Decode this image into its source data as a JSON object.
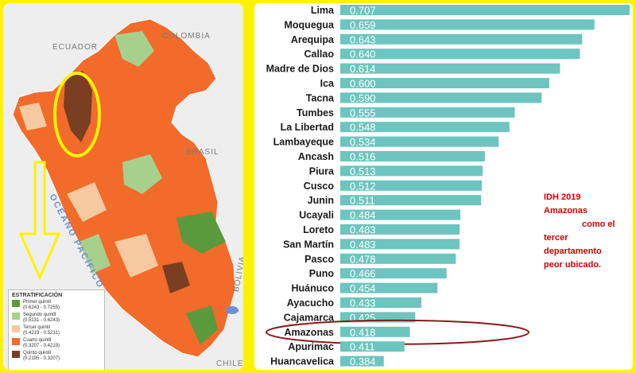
{
  "map": {
    "country_labels": [
      "ECUADOR",
      "COLOMBIA",
      "BRASIL",
      "BOLIVIA",
      "CHILE"
    ],
    "ocean_label": "OCÉANO PACÍFICO",
    "legend": {
      "title": "ESTRATIFICACIÓN",
      "items": [
        {
          "name": "Primer quintil",
          "range": "(0.6243 - 0.7255)",
          "color": "#5a9a3c"
        },
        {
          "name": "Segundo quintil",
          "range": "(0.5231 - 0.6243)",
          "color": "#a8d08d"
        },
        {
          "name": "Tercer quintil",
          "range": "(0.4219 - 0.5231)",
          "color": "#f6c9a0"
        },
        {
          "name": "Cuarto quintil",
          "range": "(0.3207 - 0.4219)",
          "color": "#f26b2a"
        },
        {
          "name": "Quinto quintil",
          "range": "(0.2195 - 0.3207)",
          "color": "#7a3e22"
        }
      ]
    }
  },
  "annotation": {
    "line1": "IDH 2019",
    "line2": "Amazonas",
    "line3": "como el",
    "line4": "tercer",
    "line5": "departamento",
    "line6": "peor ubicado."
  },
  "colors": {
    "bar": "#6cc5bf",
    "highlight_ellipse": "#8b1a1a",
    "map_circle": "#fff200",
    "annotation": "#d10000"
  },
  "chart_data": {
    "type": "bar",
    "orientation": "horizontal",
    "categories": [
      "Lima",
      "Moquegua",
      "Arequipa",
      "Callao",
      "Madre de Dios",
      "Ica",
      "Tacna",
      "Tumbes",
      "La Libertad",
      "Lambayeque",
      "Ancash",
      "Piura",
      "Cusco",
      "Junin",
      "Ucayali",
      "Loreto",
      "San Martín",
      "Pasco",
      "Puno",
      "Huánuco",
      "Ayacucho",
      "Cajamarca",
      "Amazonas",
      "Apurimac",
      "Huancavelica"
    ],
    "values": [
      0.707,
      0.659,
      0.643,
      0.64,
      0.614,
      0.6,
      0.59,
      0.555,
      0.548,
      0.534,
      0.516,
      0.513,
      0.512,
      0.511,
      0.484,
      0.483,
      0.483,
      0.478,
      0.466,
      0.454,
      0.433,
      0.425,
      0.418,
      0.411,
      0.384
    ],
    "value_labels": [
      "0.707",
      "0.659",
      "0.643",
      "0.640",
      "0.614",
      "0.600",
      "0.590",
      "0.555",
      "0.548",
      "0.534",
      "0.516",
      "0.513",
      "0.512",
      "0.511",
      "0.484",
      "0.483",
      "0.483",
      "0.478",
      "0.466",
      "0.454",
      "0.433",
      "0.425",
      "0.418",
      "0.411",
      "0.384"
    ],
    "highlighted": "Amazonas",
    "xlim": [
      0.35,
      0.707
    ]
  }
}
